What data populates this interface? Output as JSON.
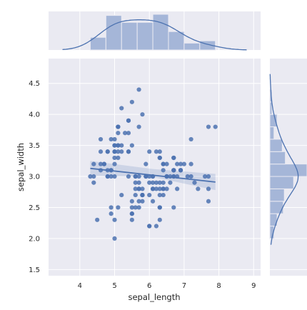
{
  "chart_data": {
    "type": "scatter",
    "kind": "jointplot-regression",
    "xlabel": "sepal_length",
    "ylabel": "sepal_width",
    "xlim": [
      3.1,
      9.2
    ],
    "ylim": [
      1.4,
      4.9
    ],
    "xticks": [
      "4",
      "5",
      "6",
      "7",
      "8",
      "9"
    ],
    "yticks": [
      "1.5",
      "2.0",
      "2.5",
      "3.0",
      "3.5",
      "4.0",
      "4.5"
    ],
    "colors": {
      "background": "#eaeaf2",
      "grid": "#ffffff",
      "marker": "#4c72b0",
      "fill": "#a5b6d8"
    },
    "grid": true,
    "scatter": [
      [
        5.1,
        3.5
      ],
      [
        4.9,
        3.0
      ],
      [
        4.7,
        3.2
      ],
      [
        4.6,
        3.1
      ],
      [
        5.0,
        3.6
      ],
      [
        5.4,
        3.9
      ],
      [
        4.6,
        3.4
      ],
      [
        5.0,
        3.4
      ],
      [
        4.4,
        2.9
      ],
      [
        4.9,
        3.1
      ],
      [
        5.4,
        3.7
      ],
      [
        4.8,
        3.4
      ],
      [
        4.8,
        3.0
      ],
      [
        4.3,
        3.0
      ],
      [
        5.8,
        4.0
      ],
      [
        5.7,
        4.4
      ],
      [
        5.4,
        3.9
      ],
      [
        5.1,
        3.5
      ],
      [
        5.7,
        3.8
      ],
      [
        5.1,
        3.8
      ],
      [
        5.4,
        3.4
      ],
      [
        5.1,
        3.7
      ],
      [
        4.6,
        3.6
      ],
      [
        5.1,
        3.3
      ],
      [
        4.8,
        3.4
      ],
      [
        5.0,
        3.0
      ],
      [
        5.0,
        3.4
      ],
      [
        5.2,
        3.5
      ],
      [
        5.2,
        3.4
      ],
      [
        4.7,
        3.2
      ],
      [
        4.8,
        3.1
      ],
      [
        5.4,
        3.4
      ],
      [
        5.2,
        4.1
      ],
      [
        5.5,
        4.2
      ],
      [
        4.9,
        3.1
      ],
      [
        5.0,
        3.2
      ],
      [
        5.5,
        3.5
      ],
      [
        4.9,
        3.6
      ],
      [
        4.4,
        3.0
      ],
      [
        5.1,
        3.4
      ],
      [
        5.0,
        3.5
      ],
      [
        4.5,
        2.3
      ],
      [
        4.4,
        3.2
      ],
      [
        5.0,
        3.5
      ],
      [
        5.1,
        3.8
      ],
      [
        4.8,
        3.0
      ],
      [
        5.1,
        3.8
      ],
      [
        4.6,
        3.2
      ],
      [
        5.3,
        3.7
      ],
      [
        5.0,
        3.3
      ],
      [
        7.0,
        3.2
      ],
      [
        6.4,
        3.2
      ],
      [
        6.9,
        3.1
      ],
      [
        5.5,
        2.3
      ],
      [
        6.5,
        2.8
      ],
      [
        5.7,
        2.8
      ],
      [
        6.3,
        3.3
      ],
      [
        4.9,
        2.4
      ],
      [
        6.6,
        2.9
      ],
      [
        5.2,
        2.7
      ],
      [
        5.0,
        2.0
      ],
      [
        5.9,
        3.0
      ],
      [
        6.0,
        2.2
      ],
      [
        6.1,
        2.9
      ],
      [
        5.6,
        2.9
      ],
      [
        6.7,
        3.1
      ],
      [
        5.6,
        3.0
      ],
      [
        5.8,
        2.7
      ],
      [
        6.2,
        2.2
      ],
      [
        5.6,
        2.5
      ],
      [
        5.9,
        3.2
      ],
      [
        6.1,
        2.8
      ],
      [
        6.3,
        2.5
      ],
      [
        6.1,
        2.8
      ],
      [
        6.4,
        2.9
      ],
      [
        6.6,
        3.0
      ],
      [
        6.8,
        2.8
      ],
      [
        6.7,
        3.0
      ],
      [
        6.0,
        2.9
      ],
      [
        5.7,
        2.6
      ],
      [
        5.5,
        2.4
      ],
      [
        5.5,
        2.4
      ],
      [
        5.8,
        2.7
      ],
      [
        6.0,
        2.7
      ],
      [
        5.4,
        3.0
      ],
      [
        6.0,
        3.4
      ],
      [
        6.7,
        3.1
      ],
      [
        6.3,
        2.3
      ],
      [
        5.6,
        3.0
      ],
      [
        5.5,
        2.5
      ],
      [
        5.5,
        2.6
      ],
      [
        6.1,
        3.0
      ],
      [
        5.8,
        2.6
      ],
      [
        5.0,
        2.3
      ],
      [
        5.6,
        2.7
      ],
      [
        5.7,
        3.0
      ],
      [
        5.7,
        2.9
      ],
      [
        6.2,
        2.9
      ],
      [
        5.1,
        2.5
      ],
      [
        5.7,
        2.8
      ],
      [
        6.3,
        3.3
      ],
      [
        5.8,
        2.7
      ],
      [
        7.1,
        3.0
      ],
      [
        6.3,
        2.9
      ],
      [
        6.5,
        3.0
      ],
      [
        7.6,
        3.0
      ],
      [
        4.9,
        2.5
      ],
      [
        7.3,
        2.9
      ],
      [
        6.7,
        2.5
      ],
      [
        7.2,
        3.6
      ],
      [
        6.5,
        3.2
      ],
      [
        6.4,
        2.7
      ],
      [
        6.8,
        3.0
      ],
      [
        5.7,
        2.5
      ],
      [
        5.8,
        2.8
      ],
      [
        6.4,
        3.2
      ],
      [
        6.5,
        3.0
      ],
      [
        7.7,
        3.8
      ],
      [
        7.7,
        2.6
      ],
      [
        6.0,
        2.2
      ],
      [
        6.9,
        3.2
      ],
      [
        5.6,
        2.8
      ],
      [
        7.7,
        2.8
      ],
      [
        6.3,
        2.7
      ],
      [
        6.7,
        3.3
      ],
      [
        7.2,
        3.2
      ],
      [
        6.2,
        2.8
      ],
      [
        6.1,
        3.0
      ],
      [
        6.4,
        2.8
      ],
      [
        7.2,
        3.0
      ],
      [
        7.4,
        2.8
      ],
      [
        7.9,
        3.8
      ],
      [
        6.4,
        2.8
      ],
      [
        6.3,
        2.8
      ],
      [
        6.1,
        2.6
      ],
      [
        7.7,
        3.0
      ],
      [
        6.3,
        3.4
      ],
      [
        6.4,
        3.1
      ],
      [
        6.0,
        3.0
      ],
      [
        6.9,
        3.1
      ],
      [
        6.7,
        3.1
      ],
      [
        6.9,
        3.1
      ],
      [
        5.8,
        2.7
      ],
      [
        6.8,
        3.2
      ],
      [
        6.7,
        3.3
      ],
      [
        6.7,
        3.0
      ],
      [
        6.3,
        2.5
      ],
      [
        6.5,
        3.0
      ],
      [
        6.2,
        3.4
      ],
      [
        5.9,
        3.0
      ]
    ],
    "regression": {
      "x": [
        4.3,
        7.9
      ],
      "y": [
        3.13,
        2.91
      ]
    },
    "confidence_band": {
      "x": [
        4.3,
        6.1,
        7.9
      ],
      "lower": [
        3.01,
        2.99,
        2.78
      ],
      "upper": [
        3.25,
        3.12,
        3.04
      ]
    },
    "x_histogram": {
      "bin_edges": [
        4.3,
        4.75,
        5.2,
        5.65,
        6.1,
        6.55,
        7.0,
        7.45,
        7.9
      ],
      "counts": [
        11,
        30,
        24,
        24,
        31,
        16,
        6,
        8
      ]
    },
    "y_histogram": {
      "bin_edges": [
        2.0,
        2.2,
        2.4,
        2.6,
        2.8,
        3.0,
        3.2,
        3.4,
        3.6,
        3.8,
        4.0,
        4.2,
        4.4
      ],
      "counts": [
        4,
        7,
        13,
        14,
        23,
        36,
        15,
        12,
        4,
        7,
        2,
        2
      ]
    }
  }
}
